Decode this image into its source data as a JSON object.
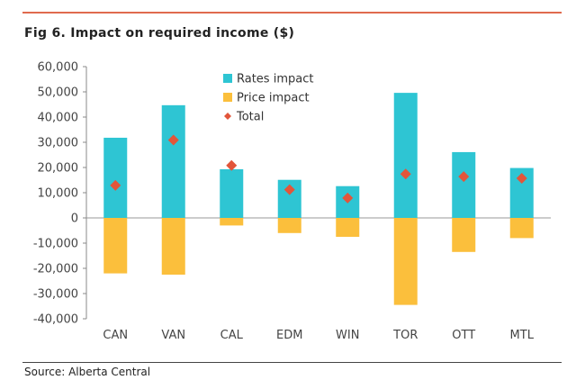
{
  "title": "Fig 6. Impact on required income ($)",
  "source": "Source: Alberta Central",
  "colors": {
    "rates": "#2ec5d3",
    "price": "#fbbf3c",
    "total": "#e2553a",
    "rule_top": "#e06a4e"
  },
  "chart_data": {
    "type": "bar",
    "stacked": true,
    "categories": [
      "CAN",
      "VAN",
      "CAL",
      "EDM",
      "WIN",
      "TOR",
      "OTT",
      "MTL"
    ],
    "series": [
      {
        "name": "Rates impact",
        "kind": "bar",
        "values": [
          31800,
          44700,
          19300,
          15100,
          12600,
          49600,
          26100,
          19800
        ]
      },
      {
        "name": "Price impact",
        "kind": "bar",
        "values": [
          -22000,
          -22500,
          -3000,
          -6000,
          -7500,
          -34500,
          -13500,
          -8000
        ]
      },
      {
        "name": "Total",
        "kind": "marker",
        "values": [
          12900,
          30900,
          20800,
          11200,
          7900,
          17400,
          16400,
          15700
        ]
      }
    ],
    "ylim": [
      -40000,
      60000
    ],
    "yticks": [
      "-40,000",
      "-30,000",
      "-20,000",
      "-10,000",
      "0",
      "10,000",
      "20,000",
      "30,000",
      "40,000",
      "50,000",
      "60,000"
    ],
    "ytick_values": [
      -40000,
      -30000,
      -20000,
      -10000,
      0,
      10000,
      20000,
      30000,
      40000,
      50000,
      60000
    ],
    "legend": [
      "Rates impact",
      "Price impact",
      "Total"
    ],
    "legend_position": "top-center",
    "grid": false
  }
}
